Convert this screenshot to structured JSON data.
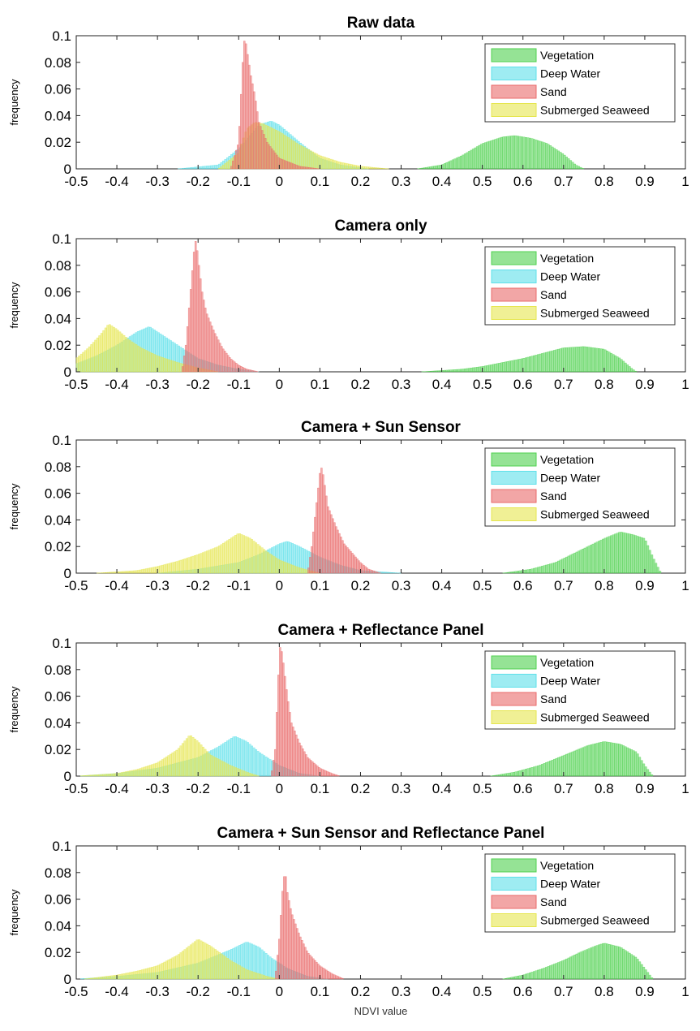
{
  "colors": {
    "Vegetation": "#4fd14f",
    "Deep Water": "#5ee0ea",
    "Sand": "#ea6b6b",
    "Submerged Seaweed": "#e6e64e"
  },
  "chart_data": [
    {
      "type": "area",
      "title": "Raw data",
      "ylabel": "frequency",
      "xlabel": "",
      "xlim": [
        -0.5,
        1
      ],
      "ylim": [
        0,
        0.1
      ],
      "xticks": [
        "-0.5",
        "-0.4",
        "-0.3",
        "-0.2",
        "-0.1",
        "0",
        "0.1",
        "0.2",
        "0.3",
        "0.4",
        "0.5",
        "0.6",
        "0.7",
        "0.8",
        "0.9",
        "1"
      ],
      "yticks": [
        "0",
        "0.02",
        "0.04",
        "0.06",
        "0.08",
        "0.1"
      ],
      "legend_position": "top-right",
      "series": [
        {
          "name": "Vegetation",
          "x": [
            0.34,
            0.4,
            0.45,
            0.5,
            0.55,
            0.58,
            0.62,
            0.66,
            0.7,
            0.73,
            0.75
          ],
          "y": [
            0,
            0.003,
            0.01,
            0.019,
            0.024,
            0.025,
            0.023,
            0.019,
            0.011,
            0.003,
            0
          ]
        },
        {
          "name": "Deep Water",
          "x": [
            -0.25,
            -0.15,
            -0.1,
            -0.05,
            -0.02,
            0,
            0.05,
            0.1,
            0.15,
            0.22
          ],
          "y": [
            0,
            0.003,
            0.015,
            0.033,
            0.036,
            0.033,
            0.02,
            0.008,
            0.003,
            0
          ]
        },
        {
          "name": "Sand",
          "x": [
            -0.12,
            -0.1,
            -0.09,
            -0.085,
            -0.08,
            -0.07,
            -0.06,
            -0.05,
            -0.03,
            0,
            0.05,
            0.1
          ],
          "y": [
            0,
            0.02,
            0.08,
            0.1,
            0.09,
            0.07,
            0.055,
            0.035,
            0.02,
            0.008,
            0.002,
            0
          ]
        },
        {
          "name": "Submerged Seaweed",
          "x": [
            -0.15,
            -0.1,
            -0.08,
            -0.06,
            -0.04,
            0,
            0.05,
            0.1,
            0.15,
            0.2,
            0.27
          ],
          "y": [
            0,
            0.012,
            0.03,
            0.035,
            0.034,
            0.028,
            0.018,
            0.01,
            0.005,
            0.002,
            0
          ]
        }
      ]
    },
    {
      "type": "area",
      "title": "Camera only",
      "ylabel": "frequency",
      "xlabel": "",
      "xlim": [
        -0.5,
        1
      ],
      "ylim": [
        0,
        0.1
      ],
      "xticks": [
        "-0.5",
        "-0.4",
        "-0.3",
        "-0.2",
        "-0.1",
        "0",
        "0.1",
        "0.2",
        "0.3",
        "0.4",
        "0.5",
        "0.6",
        "0.7",
        "0.8",
        "0.9",
        "1"
      ],
      "yticks": [
        "0",
        "0.02",
        "0.04",
        "0.06",
        "0.08",
        "0.1"
      ],
      "legend_position": "top-right",
      "series": [
        {
          "name": "Vegetation",
          "x": [
            0.35,
            0.45,
            0.5,
            0.55,
            0.6,
            0.65,
            0.7,
            0.75,
            0.8,
            0.84,
            0.87,
            0.88
          ],
          "y": [
            0,
            0.002,
            0.004,
            0.007,
            0.01,
            0.014,
            0.018,
            0.019,
            0.017,
            0.01,
            0.002,
            0
          ]
        },
        {
          "name": "Deep Water",
          "x": [
            -0.5,
            -0.45,
            -0.4,
            -0.35,
            -0.32,
            -0.3,
            -0.25,
            -0.2,
            -0.15,
            -0.1,
            -0.05
          ],
          "y": [
            0.006,
            0.012,
            0.02,
            0.03,
            0.034,
            0.03,
            0.02,
            0.01,
            0.005,
            0.002,
            0
          ]
        },
        {
          "name": "Sand",
          "x": [
            -0.24,
            -0.23,
            -0.21,
            -0.205,
            -0.2,
            -0.19,
            -0.18,
            -0.16,
            -0.14,
            -0.12,
            -0.1,
            -0.08,
            -0.05
          ],
          "y": [
            0,
            0.02,
            0.09,
            0.1,
            0.085,
            0.06,
            0.045,
            0.03,
            0.018,
            0.01,
            0.005,
            0.002,
            0
          ]
        },
        {
          "name": "Submerged Seaweed",
          "x": [
            -0.5,
            -0.47,
            -0.44,
            -0.42,
            -0.4,
            -0.37,
            -0.34,
            -0.3,
            -0.25,
            -0.2,
            -0.15
          ],
          "y": [
            0.01,
            0.018,
            0.028,
            0.036,
            0.032,
            0.024,
            0.018,
            0.012,
            0.007,
            0.003,
            0
          ]
        }
      ]
    },
    {
      "type": "area",
      "title": "Camera + Sun Sensor",
      "ylabel": "frequency",
      "xlabel": "",
      "xlim": [
        -0.5,
        1
      ],
      "ylim": [
        0,
        0.1
      ],
      "xticks": [
        "-0.5",
        "-0.4",
        "-0.3",
        "-0.2",
        "-0.1",
        "0",
        "0.1",
        "0.2",
        "0.3",
        "0.4",
        "0.5",
        "0.6",
        "0.7",
        "0.8",
        "0.9",
        "1"
      ],
      "yticks": [
        "0",
        "0.02",
        "0.04",
        "0.06",
        "0.08",
        "0.1"
      ],
      "legend_position": "top-right",
      "series": [
        {
          "name": "Vegetation",
          "x": [
            0.55,
            0.62,
            0.68,
            0.72,
            0.76,
            0.8,
            0.84,
            0.87,
            0.9,
            0.92,
            0.94
          ],
          "y": [
            0,
            0.003,
            0.008,
            0.014,
            0.02,
            0.026,
            0.031,
            0.029,
            0.026,
            0.012,
            0
          ]
        },
        {
          "name": "Deep Water",
          "x": [
            -0.3,
            -0.2,
            -0.1,
            -0.05,
            0,
            0.02,
            0.05,
            0.1,
            0.15,
            0.2,
            0.3
          ],
          "y": [
            0,
            0.003,
            0.008,
            0.014,
            0.022,
            0.024,
            0.02,
            0.012,
            0.006,
            0.002,
            0
          ]
        },
        {
          "name": "Sand",
          "x": [
            0.07,
            0.08,
            0.1,
            0.105,
            0.11,
            0.12,
            0.14,
            0.16,
            0.18,
            0.2,
            0.22,
            0.25
          ],
          "y": [
            0,
            0.02,
            0.075,
            0.08,
            0.07,
            0.05,
            0.035,
            0.022,
            0.015,
            0.008,
            0.003,
            0
          ]
        },
        {
          "name": "Submerged Seaweed",
          "x": [
            -0.45,
            -0.35,
            -0.3,
            -0.25,
            -0.2,
            -0.15,
            -0.1,
            -0.07,
            -0.03,
            0,
            0.05,
            0.1
          ],
          "y": [
            0,
            0.002,
            0.005,
            0.009,
            0.014,
            0.02,
            0.03,
            0.026,
            0.016,
            0.01,
            0.004,
            0
          ]
        }
      ]
    },
    {
      "type": "area",
      "title": "Camera + Reflectance Panel",
      "ylabel": "frequency",
      "xlabel": "",
      "xlim": [
        -0.5,
        1
      ],
      "ylim": [
        0,
        0.1
      ],
      "xticks": [
        "-0.5",
        "-0.4",
        "-0.3",
        "-0.2",
        "-0.1",
        "0",
        "0.1",
        "0.2",
        "0.3",
        "0.4",
        "0.5",
        "0.6",
        "0.7",
        "0.8",
        "0.9",
        "1"
      ],
      "yticks": [
        "0",
        "0.02",
        "0.04",
        "0.06",
        "0.08",
        "0.1"
      ],
      "legend_position": "top-right",
      "series": [
        {
          "name": "Vegetation",
          "x": [
            0.52,
            0.58,
            0.64,
            0.68,
            0.72,
            0.76,
            0.8,
            0.84,
            0.88,
            0.9,
            0.92
          ],
          "y": [
            0,
            0.003,
            0.008,
            0.013,
            0.018,
            0.023,
            0.026,
            0.024,
            0.018,
            0.008,
            0
          ]
        },
        {
          "name": "Deep Water",
          "x": [
            -0.5,
            -0.4,
            -0.3,
            -0.2,
            -0.15,
            -0.11,
            -0.08,
            -0.05,
            0,
            0.05,
            0.1
          ],
          "y": [
            0,
            0.002,
            0.006,
            0.014,
            0.022,
            0.03,
            0.026,
            0.018,
            0.008,
            0.002,
            0
          ]
        },
        {
          "name": "Sand",
          "x": [
            -0.02,
            -0.01,
            0,
            0.003,
            0.01,
            0.02,
            0.03,
            0.05,
            0.07,
            0.1,
            0.13,
            0.15
          ],
          "y": [
            0,
            0.02,
            0.09,
            0.1,
            0.085,
            0.06,
            0.04,
            0.025,
            0.014,
            0.006,
            0.002,
            0
          ]
        },
        {
          "name": "Submerged Seaweed",
          "x": [
            -0.5,
            -0.4,
            -0.35,
            -0.3,
            -0.25,
            -0.22,
            -0.2,
            -0.17,
            -0.12,
            -0.08,
            -0.05
          ],
          "y": [
            0,
            0.002,
            0.005,
            0.01,
            0.02,
            0.031,
            0.026,
            0.016,
            0.008,
            0.003,
            0
          ]
        }
      ]
    },
    {
      "type": "area",
      "title": "Camera + Sun Sensor and Reflectance Panel",
      "ylabel": "frequency",
      "xlabel": "NDVI value",
      "xlim": [
        -0.5,
        1
      ],
      "ylim": [
        0,
        0.1
      ],
      "xticks": [
        "-0.5",
        "-0.4",
        "-0.3",
        "-0.2",
        "-0.1",
        "0",
        "0.1",
        "0.2",
        "0.3",
        "0.4",
        "0.5",
        "0.6",
        "0.7",
        "0.8",
        "0.9",
        "1"
      ],
      "yticks": [
        "0",
        "0.02",
        "0.04",
        "0.06",
        "0.08",
        "0.1"
      ],
      "legend_position": "top-right",
      "series": [
        {
          "name": "Vegetation",
          "x": [
            0.55,
            0.6,
            0.65,
            0.7,
            0.74,
            0.78,
            0.8,
            0.84,
            0.88,
            0.9,
            0.92
          ],
          "y": [
            0,
            0.003,
            0.008,
            0.014,
            0.02,
            0.025,
            0.027,
            0.024,
            0.016,
            0.008,
            0
          ]
        },
        {
          "name": "Deep Water",
          "x": [
            -0.5,
            -0.4,
            -0.3,
            -0.2,
            -0.12,
            -0.08,
            -0.05,
            -0.02,
            0.02,
            0.07,
            0.12
          ],
          "y": [
            0,
            0.002,
            0.005,
            0.012,
            0.022,
            0.028,
            0.024,
            0.016,
            0.008,
            0.002,
            0
          ]
        },
        {
          "name": "Sand",
          "x": [
            -0.01,
            0,
            0.01,
            0.015,
            0.02,
            0.03,
            0.05,
            0.07,
            0.1,
            0.13,
            0.16
          ],
          "y": [
            0,
            0.03,
            0.075,
            0.08,
            0.065,
            0.05,
            0.033,
            0.02,
            0.01,
            0.004,
            0
          ]
        },
        {
          "name": "Submerged Seaweed",
          "x": [
            -0.48,
            -0.4,
            -0.35,
            -0.3,
            -0.25,
            -0.2,
            -0.17,
            -0.12,
            -0.08,
            -0.03,
            0
          ],
          "y": [
            0,
            0.003,
            0.006,
            0.01,
            0.018,
            0.03,
            0.025,
            0.014,
            0.007,
            0.002,
            0
          ]
        }
      ]
    }
  ]
}
